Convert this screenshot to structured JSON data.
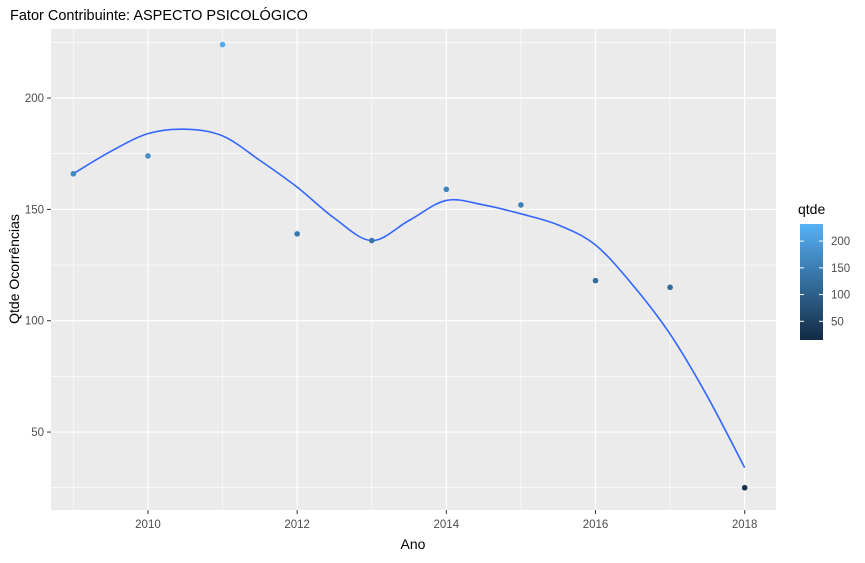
{
  "chart_data": {
    "type": "scatter",
    "title": "Fator Contribuinte: ASPECTO PSICOLÓGICO",
    "xlabel": "Ano",
    "ylabel": "Qtde Ocorrências",
    "xlim": [
      2008.7,
      2018.42
    ],
    "ylim": [
      15,
      231
    ],
    "x_ticks": [
      2010,
      2012,
      2014,
      2016,
      2018
    ],
    "y_ticks": [
      50,
      100,
      150,
      200
    ],
    "grid": true,
    "legend_placement": "right",
    "points": [
      {
        "x": 2009,
        "y": 166
      },
      {
        "x": 2010,
        "y": 174
      },
      {
        "x": 2011,
        "y": 224
      },
      {
        "x": 2012,
        "y": 139
      },
      {
        "x": 2013,
        "y": 136
      },
      {
        "x": 2014,
        "y": 159
      },
      {
        "x": 2015,
        "y": 152
      },
      {
        "x": 2016,
        "y": 118
      },
      {
        "x": 2017,
        "y": 115
      },
      {
        "x": 2018,
        "y": 25
      }
    ],
    "smooth_line": [
      {
        "x": 2009,
        "y": 166
      },
      {
        "x": 2009.5,
        "y": 176
      },
      {
        "x": 2010,
        "y": 184
      },
      {
        "x": 2010.5,
        "y": 186
      },
      {
        "x": 2011,
        "y": 183
      },
      {
        "x": 2011.5,
        "y": 172
      },
      {
        "x": 2012,
        "y": 160
      },
      {
        "x": 2012.5,
        "y": 146
      },
      {
        "x": 2013,
        "y": 136
      },
      {
        "x": 2013.5,
        "y": 145
      },
      {
        "x": 2014,
        "y": 154
      },
      {
        "x": 2014.5,
        "y": 152
      },
      {
        "x": 2015,
        "y": 148
      },
      {
        "x": 2015.5,
        "y": 143
      },
      {
        "x": 2016,
        "y": 134
      },
      {
        "x": 2016.5,
        "y": 116
      },
      {
        "x": 2017,
        "y": 94
      },
      {
        "x": 2017.5,
        "y": 66
      },
      {
        "x": 2018,
        "y": 34
      }
    ],
    "line_color": "#3366ff",
    "legend": {
      "title": "qtde",
      "ticks": [
        50,
        100,
        150,
        200
      ],
      "range": [
        15,
        232
      ],
      "color_low": "#132b43",
      "color_high": "#56b1f7"
    },
    "panel_background": "#ebebeb",
    "grid_color": "#ffffff"
  }
}
